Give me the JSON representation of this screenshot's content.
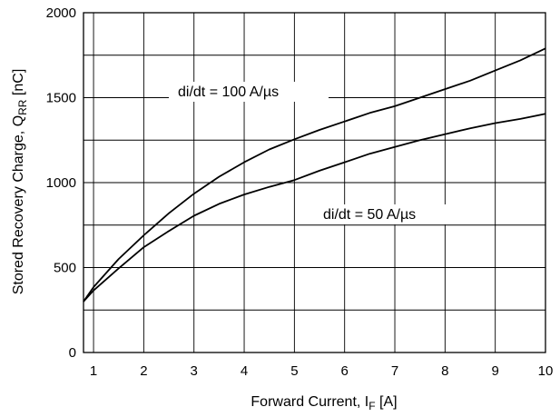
{
  "chart_data": {
    "type": "line",
    "xlabel": "Forward Current, I",
    "xlabel_sub": "F",
    "xlabel_unit": " [A]",
    "ylabel": "Stored Recovery Charge, Q",
    "ylabel_sub": "RR",
    "ylabel_unit": " [nC]",
    "xlim": [
      0.8,
      10
    ],
    "ylim": [
      0,
      2000
    ],
    "x_ticks": [
      1,
      2,
      3,
      4,
      5,
      6,
      7,
      8,
      9,
      10
    ],
    "y_ticks": [
      0,
      500,
      1000,
      1500,
      2000
    ],
    "grid": true,
    "annotations": [
      "di/dt = 100 A/µs",
      "di/dt = 50 A/µs"
    ],
    "series": [
      {
        "x": [
          0.8,
          1,
          1.5,
          2,
          2.5,
          3,
          3.5,
          4,
          4.5,
          5,
          5.5,
          6,
          6.5,
          7,
          7.5,
          8,
          8.5,
          9,
          9.5,
          10
        ],
        "y": [
          300,
          385,
          550,
          690,
          820,
          935,
          1035,
          1120,
          1195,
          1255,
          1310,
          1360,
          1410,
          1450,
          1500,
          1550,
          1600,
          1660,
          1720,
          1790
        ]
      },
      {
        "x": [
          0.8,
          1,
          1.5,
          2,
          2.5,
          3,
          3.5,
          4,
          4.5,
          5,
          5.5,
          6,
          6.5,
          7,
          7.5,
          8,
          8.5,
          9,
          9.5,
          10
        ],
        "y": [
          300,
          365,
          495,
          620,
          715,
          805,
          875,
          930,
          975,
          1015,
          1070,
          1120,
          1170,
          1210,
          1250,
          1285,
          1320,
          1350,
          1375,
          1405
        ]
      }
    ]
  }
}
